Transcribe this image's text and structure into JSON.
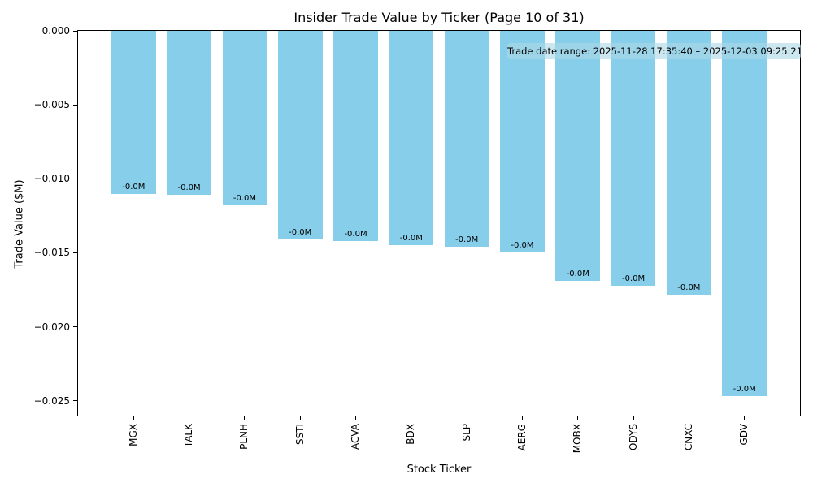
{
  "chart_data": {
    "type": "bar",
    "title": "Insider Trade Value by Ticker (Page 10 of 31)",
    "xlabel": "Stock Ticker",
    "ylabel": "Trade Value ($M)",
    "categories": [
      "MGX",
      "TALK",
      "PLNH",
      "SSTI",
      "ACVA",
      "BDX",
      "SLP",
      "AERG",
      "MOBX",
      "ODYS",
      "CNXC",
      "GDV"
    ],
    "values": [
      -0.011,
      -0.0111,
      -0.0118,
      -0.0141,
      -0.0142,
      -0.0145,
      -0.0146,
      -0.015,
      -0.0169,
      -0.0172,
      -0.0178,
      -0.0247
    ],
    "bar_value_labels": [
      "-0.0M",
      "-0.0M",
      "-0.0M",
      "-0.0M",
      "-0.0M",
      "-0.0M",
      "-0.0M",
      "-0.0M",
      "-0.0M",
      "-0.0M",
      "-0.0M",
      "-0.0M"
    ],
    "bar_color": "#87CEEB",
    "bar_width_fraction": 0.8,
    "ylim": [
      -0.026,
      0
    ],
    "yticks": [
      0,
      -0.005,
      -0.01,
      -0.015,
      -0.02,
      -0.025
    ],
    "ytick_labels": [
      "0.000",
      "−0.005",
      "−0.010",
      "−0.015",
      "−0.020",
      "−0.025"
    ],
    "annotation": "Trade date range: 2025-11-28 17:35:40 – 2025-12-03 09:25:21",
    "grid": false,
    "legend": false
  }
}
